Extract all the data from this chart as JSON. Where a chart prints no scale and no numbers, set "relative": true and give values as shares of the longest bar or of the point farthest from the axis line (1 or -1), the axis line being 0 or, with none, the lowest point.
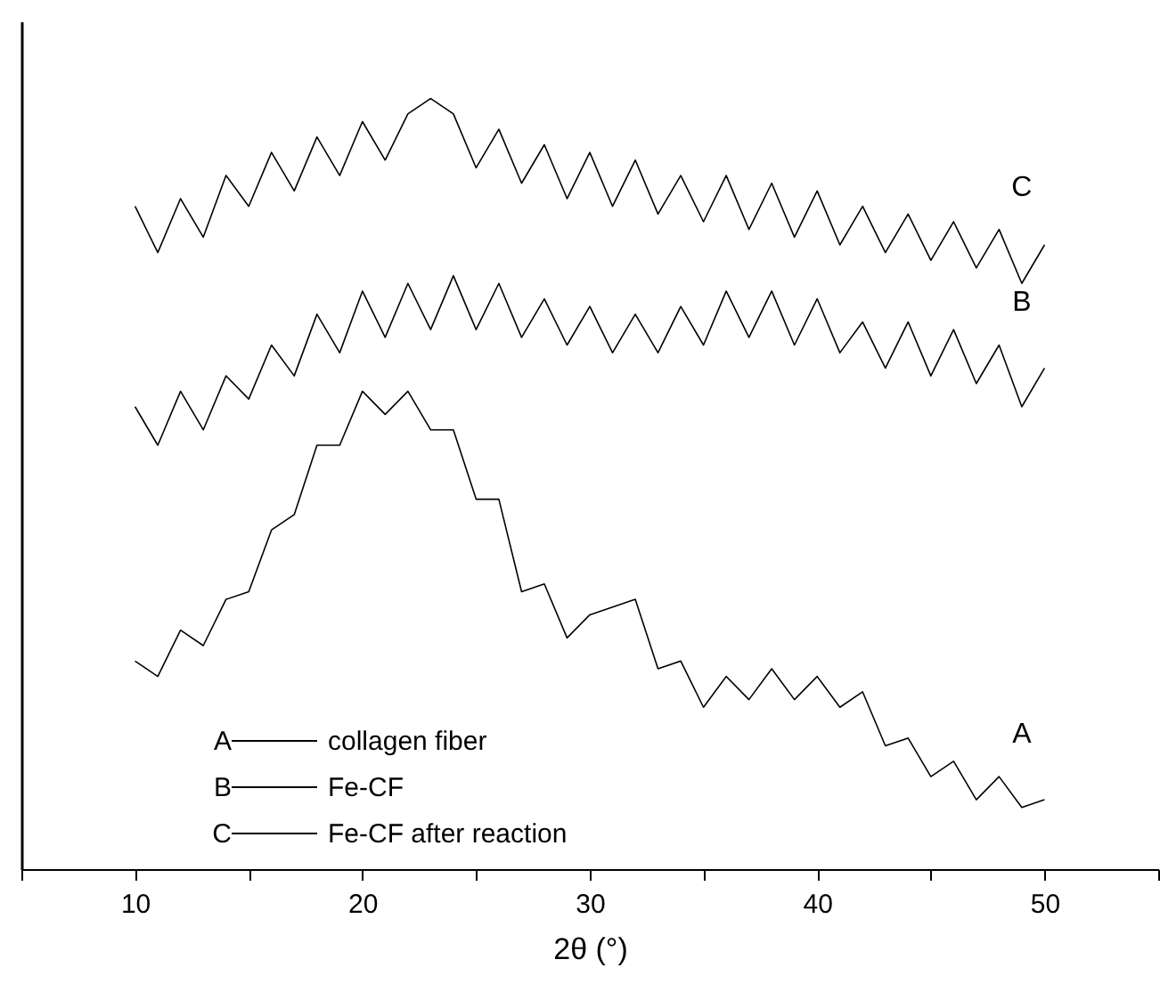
{
  "chart_data": {
    "type": "line",
    "relative": true,
    "xlabel": "2θ (°)",
    "x": [
      10,
      11,
      12,
      13,
      14,
      15,
      16,
      17,
      18,
      19,
      20,
      21,
      22,
      23,
      24,
      25,
      26,
      27,
      28,
      29,
      30,
      31,
      32,
      33,
      34,
      35,
      36,
      37,
      38,
      39,
      40,
      41,
      42,
      43,
      44,
      45,
      46,
      47,
      48,
      49,
      50
    ],
    "xlim": [
      5,
      55
    ],
    "xticks": [
      {
        "value": 5,
        "label": null
      },
      10,
      {
        "value": 15,
        "label": null
      },
      20,
      {
        "value": 25,
        "label": null
      },
      30,
      {
        "value": 35,
        "label": null
      },
      40,
      {
        "value": 45,
        "label": null
      },
      50,
      {
        "value": 55,
        "label": null
      }
    ],
    "series": [
      {
        "name": "collagen fiber",
        "color": "#000000",
        "values": [
          0.27,
          0.25,
          0.31,
          0.29,
          0.35,
          0.36,
          0.44,
          0.46,
          0.55,
          0.55,
          0.62,
          0.59,
          0.62,
          0.57,
          0.57,
          0.48,
          0.48,
          0.36,
          0.37,
          0.3,
          0.33,
          0.34,
          0.35,
          0.26,
          0.27,
          0.21,
          0.25,
          0.22,
          0.26,
          0.22,
          0.25,
          0.21,
          0.23,
          0.16,
          0.17,
          0.12,
          0.14,
          0.09,
          0.12,
          0.08,
          0.09
        ]
      },
      {
        "name": "Fe-CF",
        "color": "#000000",
        "values": [
          0.6,
          0.55,
          0.62,
          0.57,
          0.64,
          0.61,
          0.68,
          0.64,
          0.72,
          0.67,
          0.75,
          0.69,
          0.76,
          0.7,
          0.77,
          0.7,
          0.76,
          0.69,
          0.74,
          0.68,
          0.73,
          0.67,
          0.72,
          0.67,
          0.73,
          0.68,
          0.75,
          0.69,
          0.75,
          0.68,
          0.74,
          0.67,
          0.71,
          0.65,
          0.71,
          0.64,
          0.7,
          0.63,
          0.68,
          0.6,
          0.65
        ]
      },
      {
        "name": "Fe-CF after reaction",
        "color": "#000000",
        "values": [
          0.86,
          0.8,
          0.87,
          0.82,
          0.9,
          0.86,
          0.93,
          0.88,
          0.95,
          0.9,
          0.97,
          0.92,
          0.98,
          1.0,
          0.98,
          0.91,
          0.96,
          0.89,
          0.94,
          0.87,
          0.93,
          0.86,
          0.92,
          0.85,
          0.9,
          0.84,
          0.9,
          0.83,
          0.89,
          0.82,
          0.88,
          0.81,
          0.86,
          0.8,
          0.85,
          0.79,
          0.84,
          0.78,
          0.83,
          0.76,
          0.81
        ]
      }
    ],
    "annotations": [
      "A",
      "B",
      "C"
    ],
    "legend": "bottom left",
    "grid": false,
    "marker": "none",
    "line_style": "solid"
  }
}
